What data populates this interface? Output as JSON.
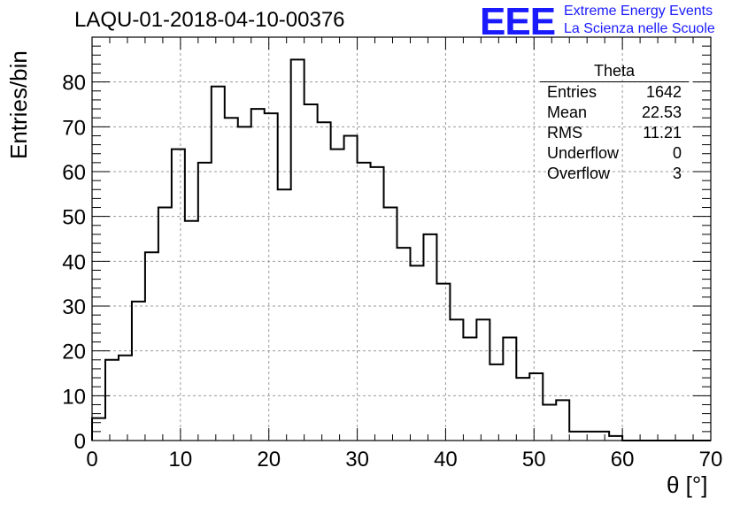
{
  "title": "LAQU-01-2018-04-10-00376",
  "logo": {
    "mark": "EEE",
    "line1": "Extreme Energy Events",
    "line2": "La Scienza nelle Scuole",
    "color": "#1a1aff"
  },
  "stats_box": {
    "name": "Theta",
    "rows": [
      {
        "label": "Entries",
        "value": "1642"
      },
      {
        "label": "Mean",
        "value": "22.53"
      },
      {
        "label": "RMS",
        "value": "11.21"
      },
      {
        "label": "Underflow",
        "value": "0"
      },
      {
        "label": "Overflow",
        "value": "3"
      }
    ]
  },
  "chart_data": {
    "type": "histogram",
    "title": "LAQU-01-2018-04-10-00376",
    "xlabel": "θ [°]",
    "ylabel": "Entries/bin",
    "xlim": [
      0,
      70
    ],
    "ylim": [
      0,
      90
    ],
    "grid": true,
    "bin_width": 1.5,
    "xticks": [
      0,
      10,
      20,
      30,
      40,
      50,
      60,
      70
    ],
    "yticks": [
      0,
      10,
      20,
      30,
      40,
      50,
      60,
      70,
      80
    ],
    "bin_edges_start": 0,
    "values": [
      5,
      18,
      19,
      31,
      42,
      52,
      65,
      49,
      62,
      79,
      72,
      70,
      74,
      73,
      56,
      85,
      75,
      71,
      65,
      68,
      62,
      61,
      52,
      43,
      39,
      46,
      35,
      27,
      23,
      27,
      17,
      23,
      14,
      15,
      8,
      9,
      2,
      2,
      2,
      1,
      0,
      0,
      0,
      0,
      0,
      0,
      0
    ]
  }
}
